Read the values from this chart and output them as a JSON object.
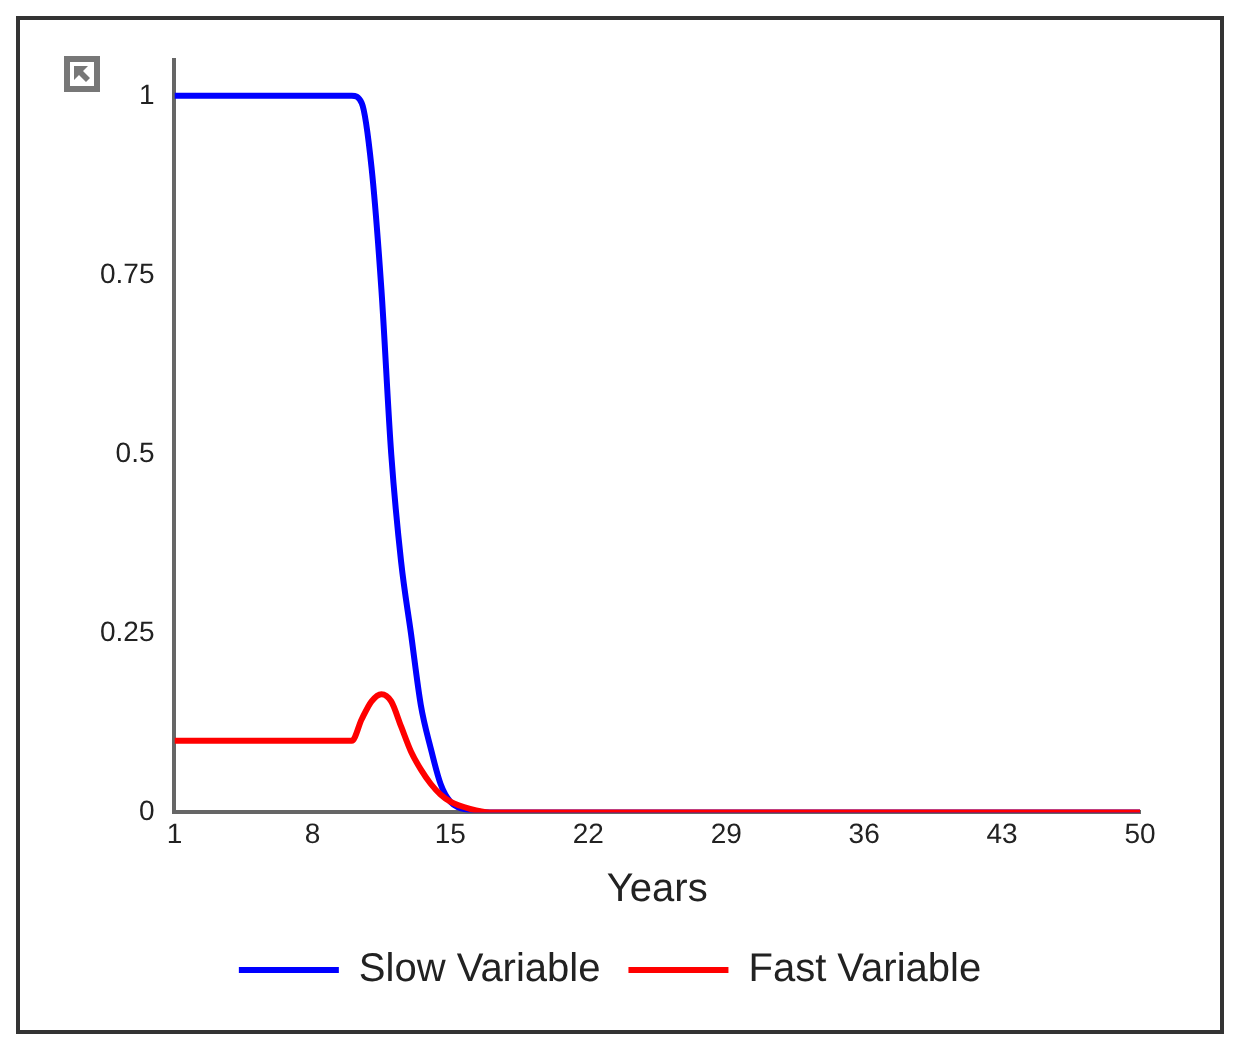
{
  "chart_data": {
    "type": "line",
    "xlabel": "Years",
    "x": [
      1,
      10,
      10.5,
      11,
      11.5,
      12,
      12.5,
      13,
      13.5,
      14,
      14.5,
      15,
      16,
      17,
      50
    ],
    "series": [
      {
        "name": "Slow Variable",
        "color": "#0000ff",
        "values": [
          1,
          1,
          0.99,
          0.9,
          0.73,
          0.5,
          0.35,
          0.25,
          0.15,
          0.09,
          0.04,
          0.015,
          0.003,
          0,
          0
        ]
      },
      {
        "name": "Fast Variable",
        "color": "#ff0000",
        "values": [
          0.1,
          0.1,
          0.13,
          0.155,
          0.165,
          0.155,
          0.12,
          0.085,
          0.06,
          0.04,
          0.025,
          0.015,
          0.005,
          0,
          0
        ]
      }
    ],
    "xlim": [
      1,
      50
    ],
    "xticks": [
      1,
      8,
      15,
      22,
      29,
      36,
      43,
      50
    ],
    "ylim": [
      0,
      1.05
    ],
    "yticks": [
      0,
      0.25,
      0.5,
      0.75,
      1
    ],
    "grid": false,
    "legend": "bottom",
    "marker": "none",
    "line_style": "solid"
  }
}
